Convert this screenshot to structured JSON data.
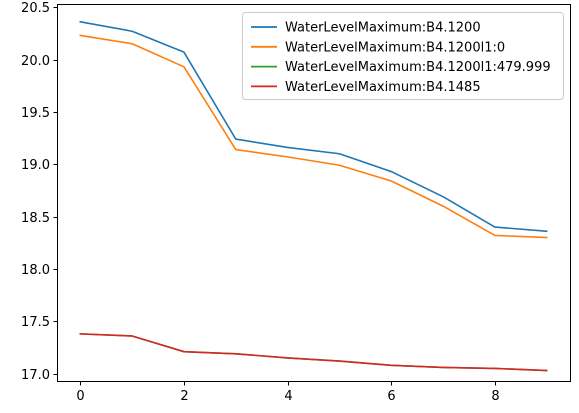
{
  "chart_data": {
    "type": "line",
    "title": "",
    "xlabel": "",
    "ylabel": "",
    "x": [
      0,
      1,
      2,
      3,
      4,
      5,
      6,
      7,
      8,
      9
    ],
    "xlim": [
      -0.45,
      9.45
    ],
    "ylim": [
      16.93,
      20.53
    ],
    "xticks": [
      0,
      2,
      4,
      6,
      8
    ],
    "yticks": [
      17.0,
      17.5,
      18.0,
      18.5,
      19.0,
      19.5,
      20.0,
      20.5
    ],
    "xtick_labels": [
      "0",
      "2",
      "4",
      "6",
      "8"
    ],
    "ytick_labels": [
      "17.0",
      "17.5",
      "18.0",
      "18.5",
      "19.0",
      "19.5",
      "20.0",
      "20.5"
    ],
    "grid": false,
    "legend_position": "top-right",
    "series": [
      {
        "name": "WaterLevelMaximum:B4.1200",
        "color": "#1f77b4",
        "values": [
          20.36,
          20.27,
          20.07,
          19.24,
          19.16,
          19.1,
          18.93,
          18.69,
          18.4,
          18.36
        ]
      },
      {
        "name": "WaterLevelMaximum:B4.1200l1:0",
        "color": "#ff7f0e",
        "values": [
          20.23,
          20.15,
          19.93,
          19.14,
          19.07,
          18.99,
          18.84,
          18.6,
          18.32,
          18.3
        ]
      },
      {
        "name": "WaterLevelMaximum:B4.1200l1:479.999",
        "color": "#2ca02c",
        "values": [
          17.38,
          17.36,
          17.21,
          17.19,
          17.15,
          17.12,
          17.08,
          17.06,
          17.05,
          17.03
        ]
      },
      {
        "name": "WaterLevelMaximum:B4.1485",
        "color": "#d62728",
        "values": [
          17.38,
          17.36,
          17.21,
          17.19,
          17.15,
          17.12,
          17.08,
          17.06,
          17.05,
          17.03
        ]
      }
    ]
  }
}
